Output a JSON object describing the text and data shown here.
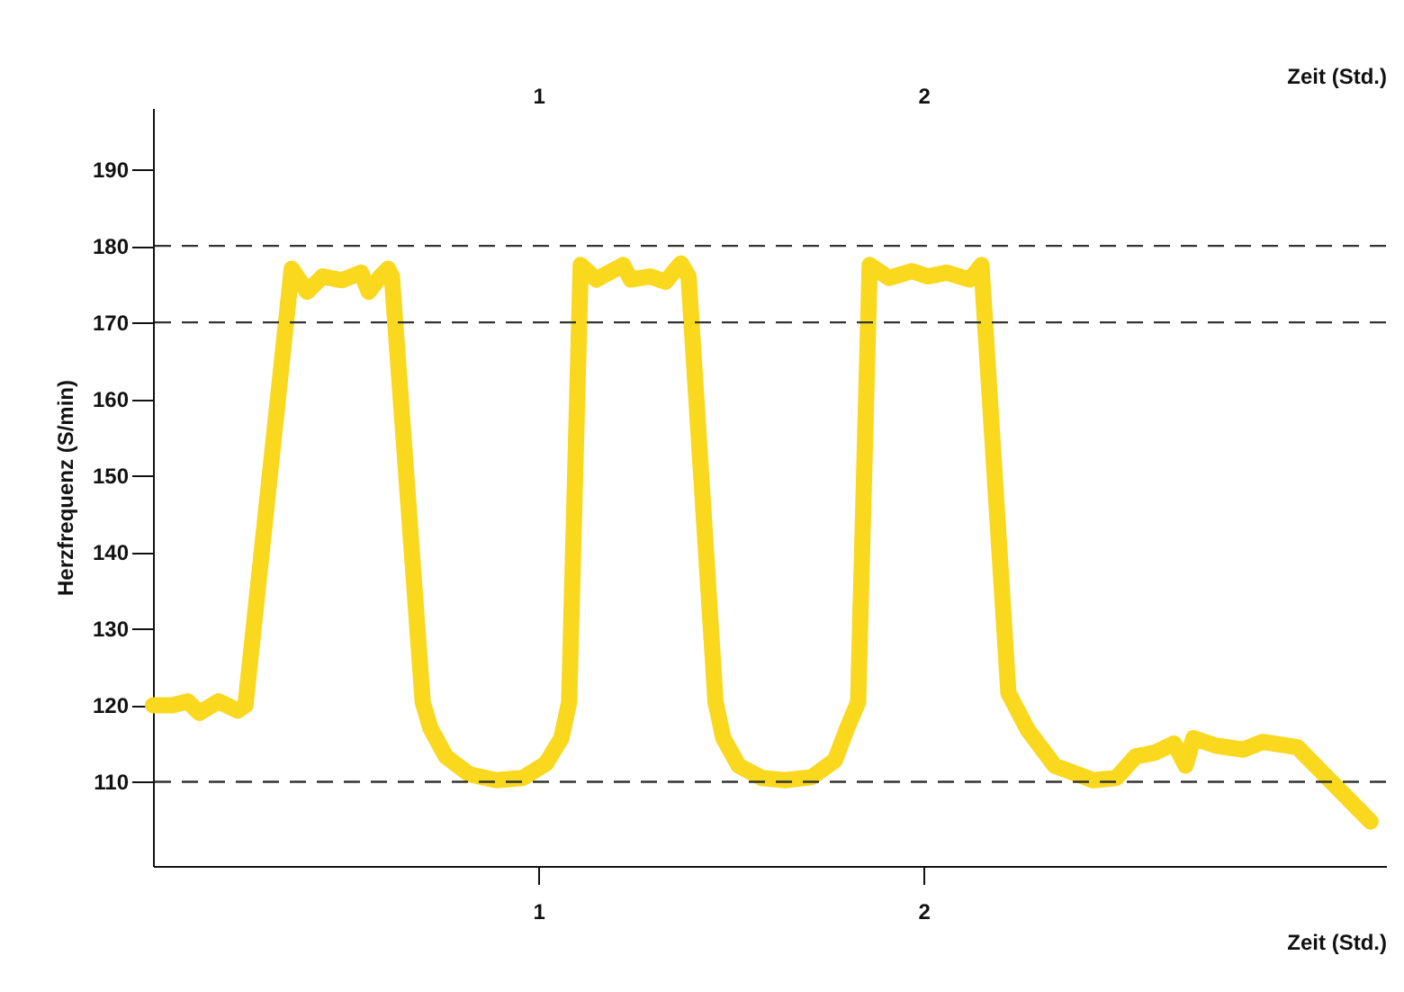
{
  "chart_data": {
    "type": "line",
    "xlabel": "Zeit (Std.)",
    "ylabel": "Herzfrequenz (S/min)",
    "x2label": "Zeit (Std.)",
    "xlim": [
      0,
      3.2
    ],
    "xticks": [
      1,
      2
    ],
    "x2lim": [
      0,
      3.2
    ],
    "x2ticks": [
      1,
      2
    ],
    "ylim": [
      99,
      198
    ],
    "yticks": [
      110,
      120,
      130,
      140,
      150,
      160,
      170,
      180,
      190
    ],
    "grid": false,
    "line_style": "solid",
    "ref_lines": [
      {
        "axis": "y",
        "value": 180,
        "line_style": "dashed"
      },
      {
        "axis": "y",
        "value": 170,
        "line_style": "dashed"
      },
      {
        "axis": "y",
        "value": 110,
        "line_style": "dashed"
      }
    ],
    "series": [
      {
        "color": "#f9d81e",
        "x": [
          0,
          0.05,
          0.09,
          0.12,
          0.17,
          0.22,
          0.24,
          0.36,
          0.4,
          0.44,
          0.49,
          0.54,
          0.56,
          0.59,
          0.61,
          0.62,
          0.7,
          0.72,
          0.76,
          0.82,
          0.89,
          0.96,
          1.02,
          1.06,
          1.08,
          1.11,
          1.15,
          1.22,
          1.24,
          1.29,
          1.33,
          1.37,
          1.39,
          1.46,
          1.48,
          1.52,
          1.58,
          1.64,
          1.71,
          1.77,
          1.8,
          1.83,
          1.86,
          1.91,
          1.97,
          2.01,
          2.06,
          2.12,
          2.15,
          2.22,
          2.27,
          2.34,
          2.44,
          2.5,
          2.55,
          2.6,
          2.65,
          2.68,
          2.7,
          2.76,
          2.83,
          2.88,
          2.97,
          3.16
        ],
        "values": [
          120,
          120,
          120.5,
          119,
          120.5,
          119.3,
          120,
          177,
          174,
          176,
          175.5,
          176.5,
          174,
          176,
          177,
          176,
          120.4,
          117,
          113.3,
          111,
          110.2,
          110.5,
          112.4,
          115.7,
          120.4,
          177.5,
          175.6,
          177.5,
          175.6,
          176,
          175.3,
          177.7,
          176,
          120.4,
          115.7,
          112.1,
          110.5,
          110.2,
          110.6,
          112.8,
          116.8,
          120.4,
          177.5,
          175.8,
          176.7,
          176,
          176.5,
          175.6,
          177.5,
          121.6,
          116.8,
          112.1,
          110.2,
          110.5,
          113.3,
          113.8,
          115,
          112.1,
          115.7,
          114.7,
          114.2,
          115.2,
          114.5,
          104.8
        ]
      }
    ]
  }
}
